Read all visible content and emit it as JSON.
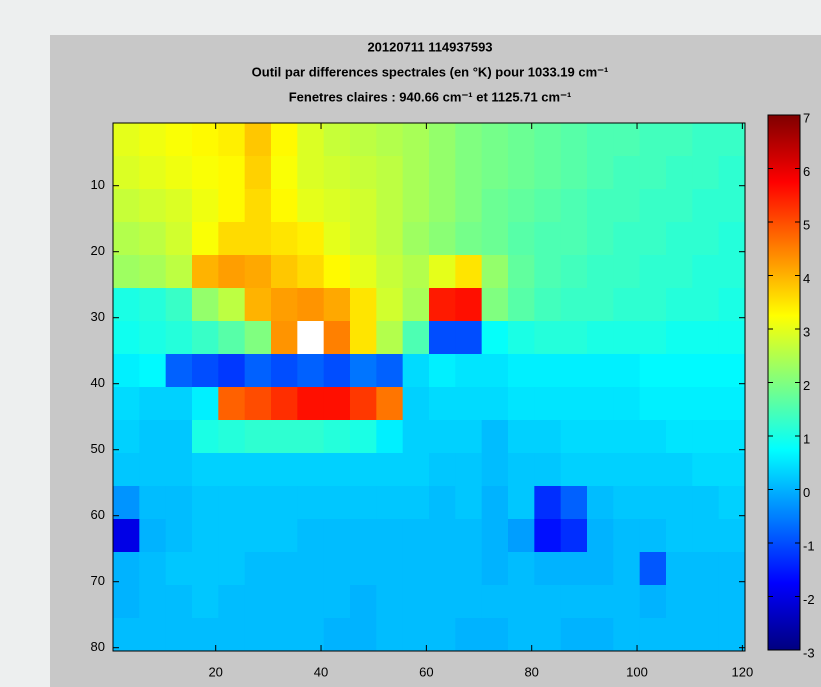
{
  "chart_data": {
    "type": "heatmap",
    "title": [
      "20120711 114937593",
      "Outil par differences spectrales (en °K) pour 1033.19 cm⁻¹",
      "Fenetres claires : 940.66 cm⁻¹ et 1125.71 cm⁻¹"
    ],
    "colormap": "jet",
    "clim": [
      -3,
      7
    ],
    "colorbar_ticks": [
      -3,
      -2,
      -1,
      0,
      1,
      2,
      3,
      4,
      5,
      6,
      7
    ],
    "xlim": [
      0.5,
      120.5
    ],
    "ylim": [
      0.5,
      80.5
    ],
    "y_reversed": true,
    "xticks": [
      20,
      40,
      60,
      80,
      100,
      120
    ],
    "yticks": [
      10,
      20,
      30,
      40,
      50,
      60,
      70,
      80
    ],
    "x": [
      3,
      8,
      13,
      18,
      23,
      28,
      33,
      38,
      43,
      48,
      53,
      58,
      63,
      68,
      73,
      78,
      83,
      88,
      93,
      98,
      103,
      108,
      113,
      118
    ],
    "y": [
      3,
      8,
      13,
      18,
      23,
      28,
      33,
      38,
      43,
      48,
      53,
      58,
      63,
      68,
      73,
      78
    ],
    "z": [
      [
        3.0,
        3.1,
        3.2,
        3.3,
        3.4,
        3.8,
        3.3,
        2.9,
        2.7,
        2.6,
        2.5,
        2.4,
        2.2,
        2.0,
        1.9,
        1.8,
        1.7,
        1.6,
        1.5,
        1.5,
        1.4,
        1.4,
        1.3,
        1.3
      ],
      [
        2.9,
        3.0,
        3.1,
        3.2,
        3.3,
        3.7,
        3.2,
        2.9,
        2.8,
        2.7,
        2.6,
        2.4,
        2.2,
        2.0,
        1.9,
        1.8,
        1.7,
        1.6,
        1.5,
        1.4,
        1.4,
        1.3,
        1.3,
        1.2
      ],
      [
        2.7,
        2.8,
        2.9,
        3.1,
        3.3,
        3.6,
        3.3,
        3.0,
        2.9,
        2.8,
        2.6,
        2.4,
        2.2,
        2.0,
        1.8,
        1.7,
        1.6,
        1.5,
        1.4,
        1.4,
        1.3,
        1.3,
        1.2,
        1.2
      ],
      [
        2.5,
        2.6,
        2.8,
        3.2,
        3.6,
        3.6,
        3.5,
        3.4,
        3.0,
        2.8,
        2.6,
        2.3,
        2.1,
        1.9,
        1.8,
        1.6,
        1.5,
        1.5,
        1.4,
        1.3,
        1.3,
        1.2,
        1.2,
        1.1
      ],
      [
        2.3,
        2.4,
        2.6,
        4.0,
        4.2,
        4.1,
        3.8,
        3.6,
        3.3,
        3.0,
        2.7,
        2.5,
        3.0,
        3.5,
        2.2,
        1.7,
        1.5,
        1.4,
        1.3,
        1.3,
        1.2,
        1.2,
        1.1,
        1.1
      ],
      [
        1.0,
        1.1,
        1.3,
        2.2,
        2.6,
        4.0,
        4.2,
        4.3,
        4.1,
        3.5,
        2.8,
        2.4,
        5.5,
        5.6,
        2.0,
        1.6,
        1.4,
        1.3,
        1.3,
        1.2,
        1.2,
        1.1,
        1.1,
        1.0
      ],
      [
        0.9,
        1.0,
        1.1,
        1.3,
        1.6,
        2.0,
        4.3,
        null,
        4.5,
        3.5,
        2.5,
        1.5,
        -1.0,
        -1.0,
        0.8,
        1.0,
        1.1,
        1.1,
        1.0,
        1.0,
        1.0,
        0.9,
        0.9,
        0.9
      ],
      [
        0.6,
        0.7,
        -0.8,
        -1.0,
        -1.2,
        -0.8,
        -1.0,
        -0.8,
        -1.0,
        -0.6,
        -0.8,
        0.4,
        0.6,
        0.5,
        0.5,
        0.6,
        0.6,
        0.6,
        0.6,
        0.6,
        0.7,
        0.7,
        0.7,
        0.7
      ],
      [
        0.4,
        0.3,
        0.3,
        0.6,
        4.8,
        5.0,
        5.3,
        5.6,
        5.6,
        5.2,
        4.6,
        0.3,
        0.4,
        0.4,
        0.4,
        0.5,
        0.5,
        0.5,
        0.5,
        0.5,
        0.6,
        0.6,
        0.6,
        0.6
      ],
      [
        0.3,
        0.2,
        0.2,
        1.0,
        1.1,
        1.2,
        1.2,
        1.2,
        1.1,
        1.0,
        0.6,
        0.3,
        0.3,
        0.3,
        0.1,
        0.3,
        0.3,
        0.4,
        0.4,
        0.4,
        0.4,
        0.5,
        0.5,
        0.5
      ],
      [
        0.2,
        0.2,
        0.2,
        0.3,
        0.3,
        0.3,
        0.3,
        0.3,
        0.3,
        0.3,
        0.3,
        0.3,
        0.2,
        0.2,
        0.1,
        0.2,
        0.2,
        0.3,
        0.3,
        0.3,
        0.3,
        0.3,
        0.4,
        0.4
      ],
      [
        -0.3,
        0.1,
        0.1,
        0.2,
        0.2,
        0.2,
        0.2,
        0.2,
        0.2,
        0.2,
        0.2,
        0.2,
        0.1,
        0.2,
        0.0,
        0.2,
        -1.3,
        -0.8,
        0.1,
        0.2,
        0.2,
        0.2,
        0.2,
        0.3
      ],
      [
        -2.0,
        0.0,
        0.1,
        0.2,
        0.2,
        0.2,
        0.2,
        0.1,
        0.1,
        0.1,
        0.1,
        0.1,
        0.1,
        0.1,
        0.0,
        -0.2,
        -1.6,
        -1.3,
        0.0,
        0.1,
        0.1,
        0.2,
        0.2,
        0.2
      ],
      [
        0.0,
        0.1,
        0.2,
        0.2,
        0.2,
        0.1,
        0.1,
        0.1,
        0.1,
        0.1,
        0.1,
        0.1,
        0.1,
        0.1,
        0.0,
        0.1,
        0.0,
        0.0,
        0.0,
        0.1,
        -0.9,
        0.1,
        0.1,
        0.1
      ],
      [
        0.0,
        0.1,
        0.1,
        0.2,
        0.1,
        0.1,
        0.1,
        0.1,
        0.1,
        0.0,
        0.1,
        0.1,
        0.1,
        0.1,
        0.1,
        0.1,
        0.1,
        0.1,
        0.1,
        0.1,
        0.0,
        0.1,
        0.1,
        0.1
      ],
      [
        0.1,
        0.1,
        0.1,
        0.1,
        0.1,
        0.1,
        0.1,
        0.1,
        0.0,
        0.0,
        0.1,
        0.1,
        0.1,
        0.0,
        0.0,
        0.1,
        0.1,
        0.0,
        0.0,
        0.1,
        0.1,
        0.1,
        0.1,
        0.1
      ]
    ]
  }
}
